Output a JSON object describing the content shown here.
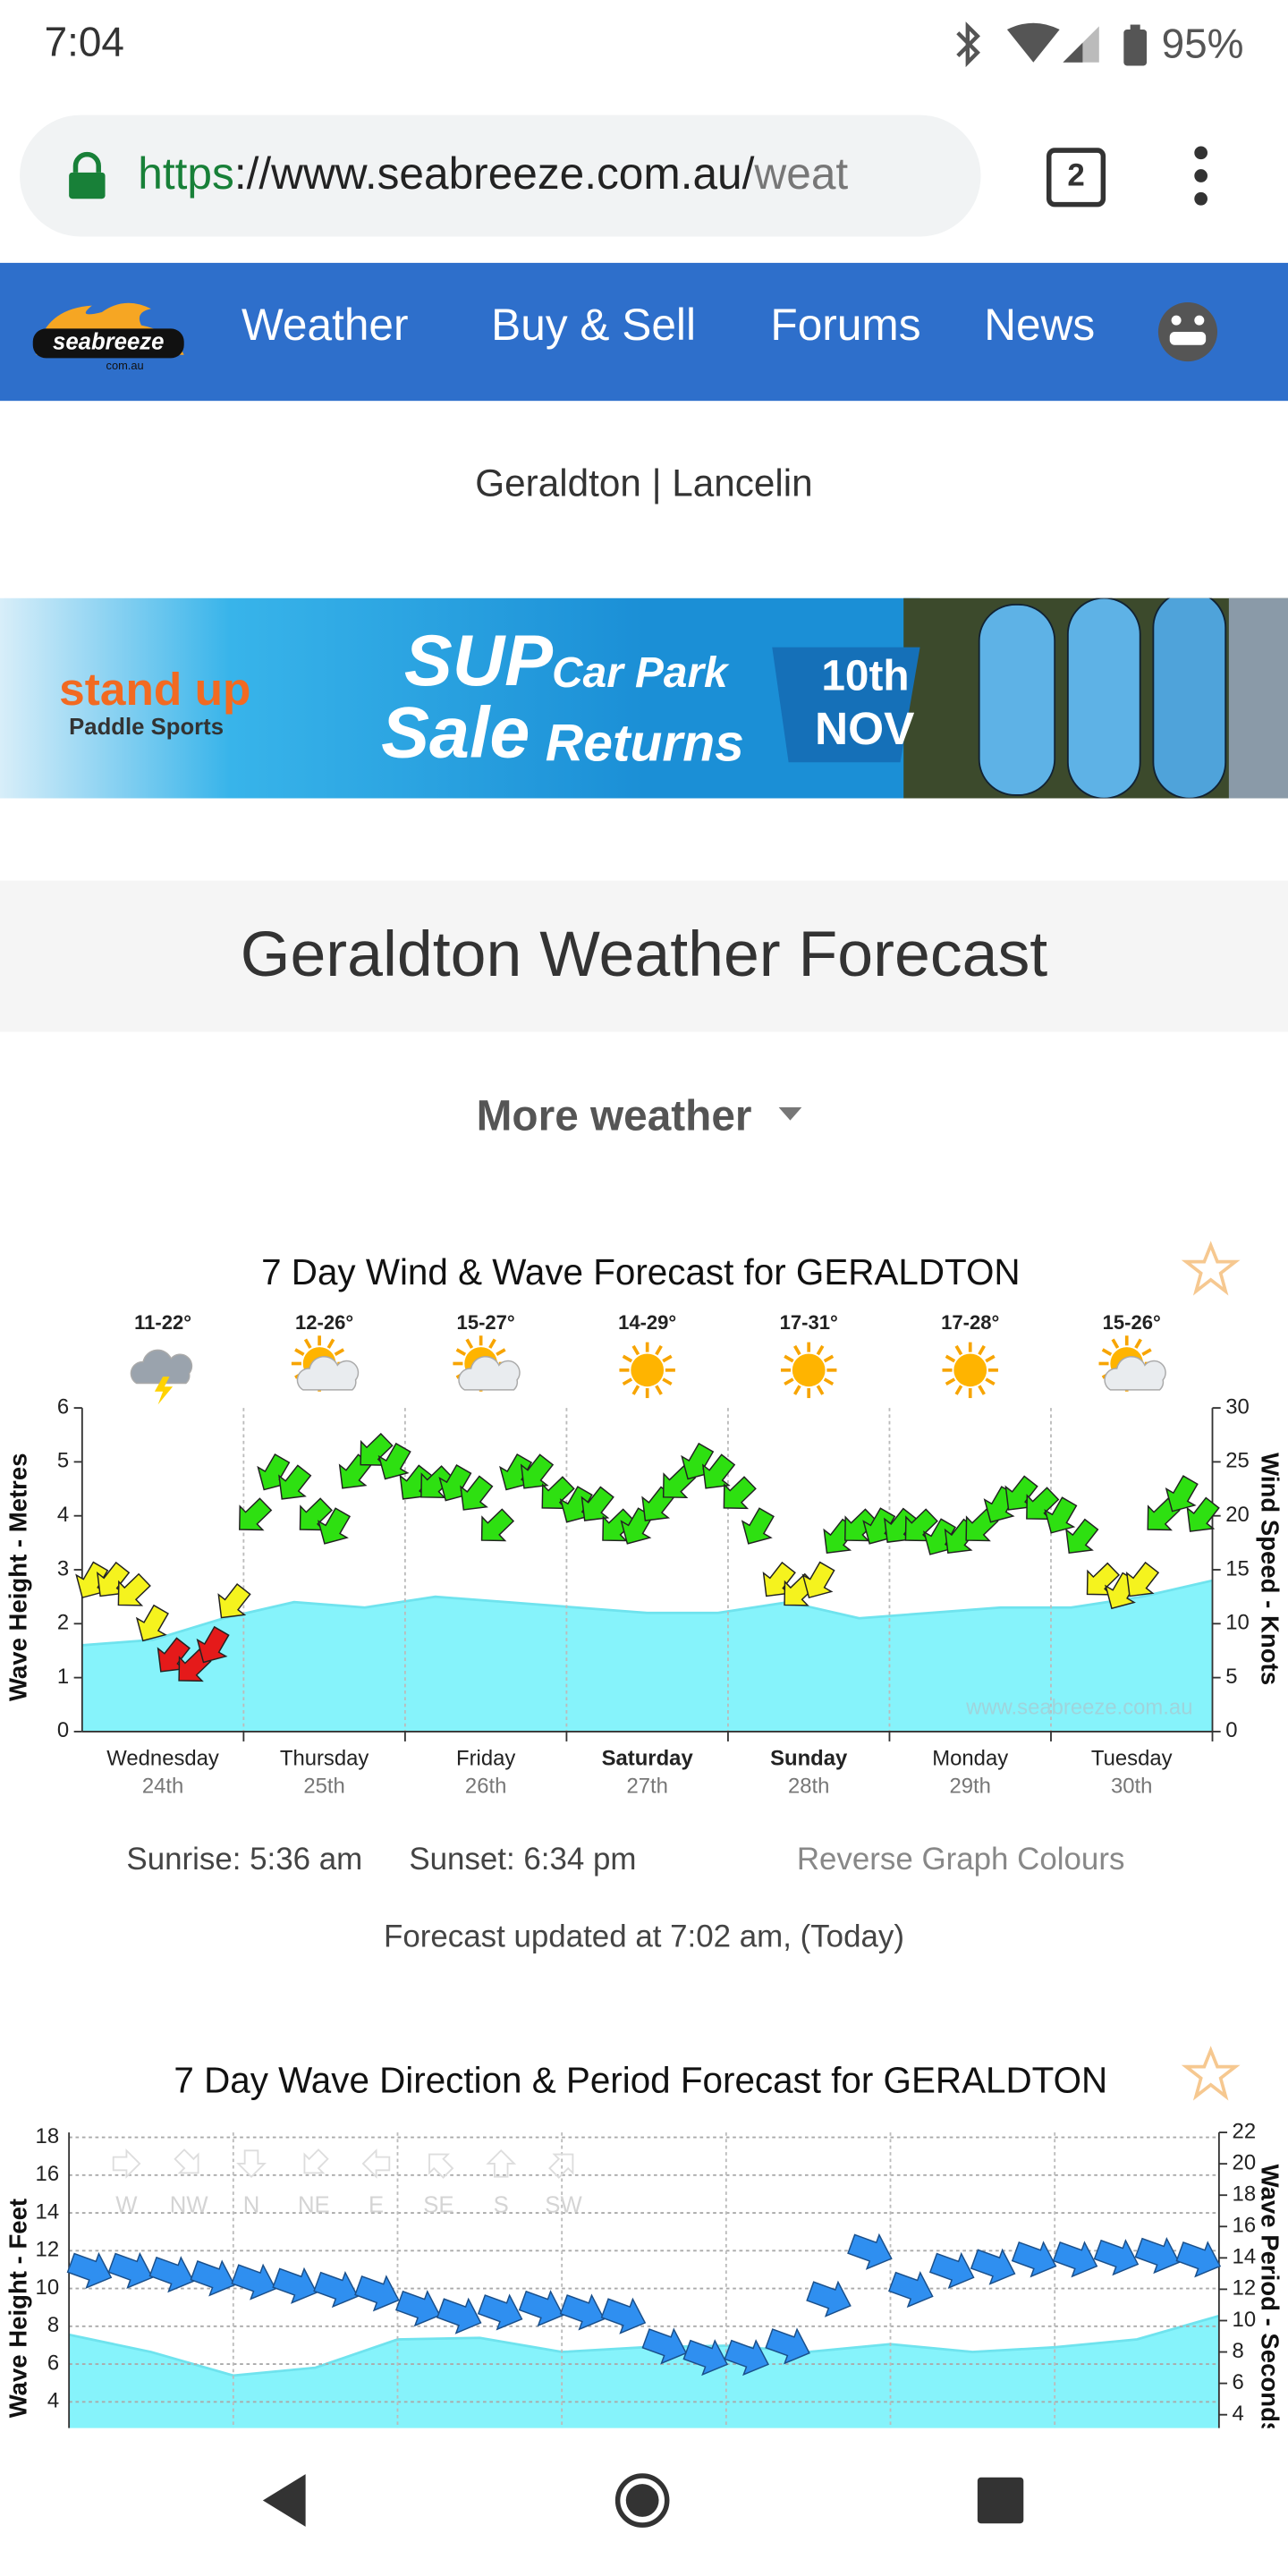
{
  "status_bar": {
    "time": "7:04",
    "battery": "95%"
  },
  "browser": {
    "url_scheme": "https",
    "url_host": "://www.seabreeze.com.au/",
    "url_path": "weat",
    "tab_count": "2"
  },
  "nav": {
    "logo": "seabreeze",
    "logo_sub": "com.au",
    "items": [
      "Weather",
      "Buy & Sell",
      "Forums",
      "News"
    ]
  },
  "locations": {
    "items": [
      "Geraldton",
      "Lancelin"
    ],
    "separator": "|"
  },
  "banner": {
    "brand": "stand up",
    "brand_sub": "Paddle Sports",
    "line_1a": "SUP",
    "line_1b": "Car Park",
    "line_2a": "Sale",
    "line_2b": "Returns",
    "date_1": "10th",
    "date_2": "NOV"
  },
  "page_title": "Geraldton Weather Forecast",
  "more_weather": "More weather",
  "wind_chart": {
    "type": "line",
    "title": "7 Day Wind & Wave Forecast for GERALDTON",
    "y_label": "Wave Height - Metres",
    "y2_label": "Wind Speed - Knots",
    "ylim": [
      0,
      6
    ],
    "yticks": [
      0,
      1,
      2,
      3,
      4,
      5,
      6
    ],
    "y2lim": [
      0,
      30
    ],
    "y2ticks": [
      0,
      5,
      10,
      15,
      20,
      25,
      30
    ],
    "days": [
      {
        "day": "Wednesday",
        "date": "24th",
        "temps": "11-22°"
      },
      {
        "day": "Thursday",
        "date": "25th",
        "temps": "12-26°"
      },
      {
        "day": "Friday",
        "date": "26th",
        "temps": "15-27°"
      },
      {
        "day": "Saturday",
        "date": "27th",
        "temps": "14-29°"
      },
      {
        "day": "Sunday",
        "date": "28th",
        "temps": "17-31°"
      },
      {
        "day": "Monday",
        "date": "29th",
        "temps": "17-28°"
      },
      {
        "day": "Tuesday",
        "date": "30th",
        "temps": "15-26°"
      }
    ],
    "wave_height": [
      1.6,
      1.7,
      2.1,
      2.4,
      2.3,
      2.5,
      2.4,
      2.3,
      2.2,
      2.2,
      2.4,
      2.1,
      2.2,
      2.3,
      2.3,
      2.5,
      2.8
    ],
    "wave_color": "#86f3fb",
    "wind_speed": [
      14,
      14,
      13,
      10,
      7,
      6,
      8,
      12,
      20,
      24,
      23,
      20,
      19,
      24,
      26,
      25,
      23,
      23,
      23,
      22,
      19,
      24,
      24,
      22,
      21,
      21,
      19,
      19,
      21,
      23,
      25,
      24,
      22,
      19,
      14,
      13,
      14,
      18,
      19,
      19,
      19,
      19,
      18,
      18,
      19,
      21,
      22,
      21,
      20,
      18,
      14,
      13,
      14,
      20,
      22,
      20
    ],
    "wind_colors": [
      "#e51a1a",
      "#f5f31e",
      "#2ee011"
    ],
    "watermark": "www.seabreeze.com.au"
  },
  "chart_footer": {
    "sunrise": "Sunrise: 5:36 am",
    "sunset": "Sunset: 6:34 pm",
    "reverse": "Reverse Graph Colours",
    "updated": "Forecast updated at 7:02 am, (Today)"
  },
  "wave_chart": {
    "type": "line",
    "title": "7 Day Wave Direction & Period Forecast for GERALDTON",
    "y_label": "Wave Height - Feet",
    "y2_label": "Wave Period - Seconds",
    "ylim": [
      0,
      18
    ],
    "yticks": [
      4,
      6,
      8,
      10,
      12,
      14,
      16,
      18
    ],
    "y2lim": [
      0,
      22
    ],
    "y2ticks": [
      4,
      6,
      8,
      10,
      12,
      14,
      16,
      18,
      20,
      22
    ],
    "directions": [
      "W",
      "NW",
      "N",
      "NE",
      "E",
      "SE",
      "S",
      "SW"
    ],
    "wave_height": [
      11,
      11,
      10.8,
      10.6,
      10.4,
      10.2,
      10,
      9.8,
      9,
      8.6,
      8.8,
      9,
      8.8,
      8.6,
      7,
      6.4,
      6.4,
      7,
      9.5,
      12,
      10,
      11,
      11.2,
      11.6,
      11.6,
      11.7,
      11.8,
      11.6
    ],
    "wave_period": [
      9.1,
      8,
      6.5,
      7,
      8.8,
      8.9,
      8,
      8.3,
      8.4,
      8,
      8.5,
      8,
      8.3,
      8.8,
      10.3
    ],
    "arrow_color": "#2f8ff0",
    "period_color": "#86f3fb"
  }
}
